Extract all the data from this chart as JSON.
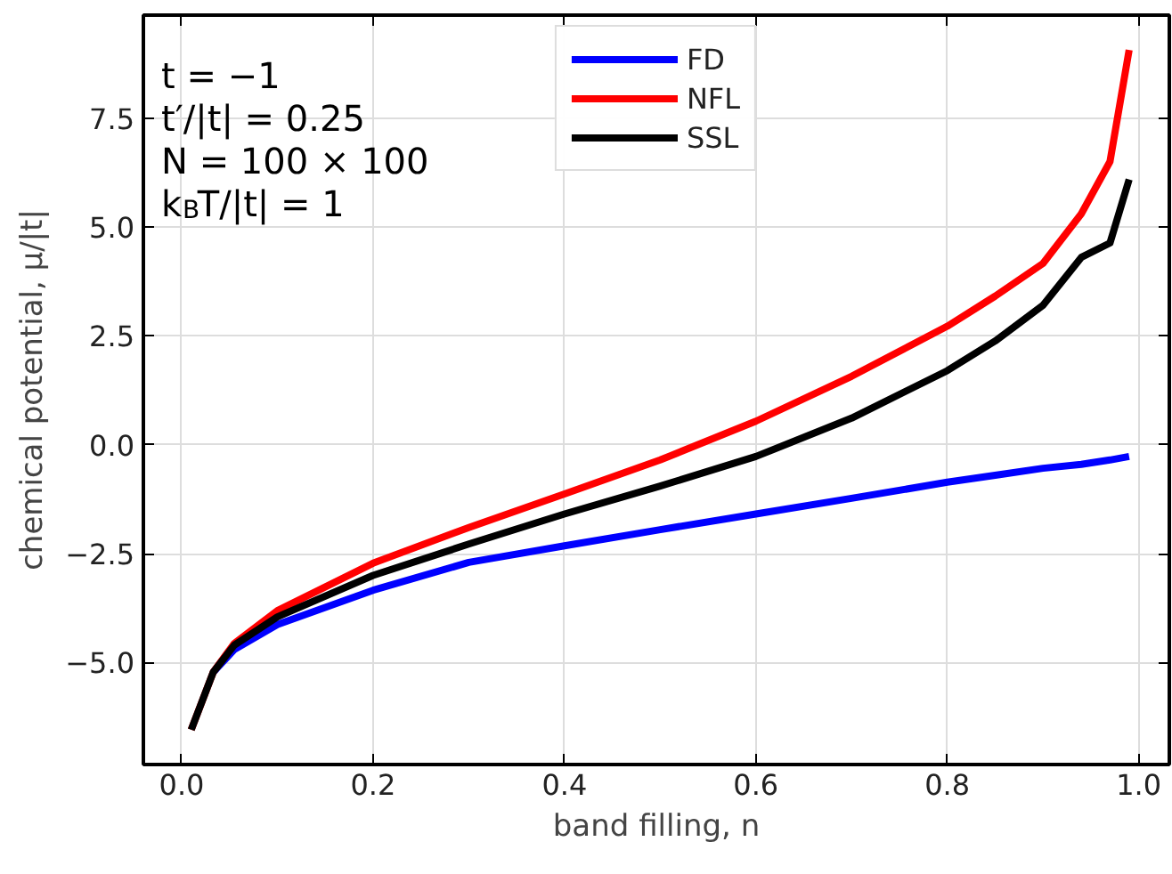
{
  "chart_data": {
    "type": "line",
    "xlabel": "band filling, n",
    "ylabel": "chemical potential, μ/|t|",
    "annotations": [
      "t = −1",
      "t′/|t| = 0.25",
      "N = 100 × 100",
      "k$_{B}$T/|t| = 1"
    ],
    "x": [
      0.01,
      0.033,
      0.055,
      0.1,
      0.2,
      0.3,
      0.4,
      0.5,
      0.6,
      0.7,
      0.8,
      0.85,
      0.9,
      0.94,
      0.97,
      0.99
    ],
    "series": [
      {
        "name": "FD",
        "color": "#0000ff",
        "values": [
          null,
          -5.22,
          -4.7,
          -4.13,
          -3.34,
          -2.7,
          -2.32,
          -1.95,
          -1.59,
          -1.23,
          -0.86,
          -0.7,
          -0.54,
          -0.45,
          -0.35,
          -0.27
        ]
      },
      {
        "name": "NFL",
        "color": "#ff0000",
        "values": [
          -6.54,
          -5.22,
          -4.56,
          -3.81,
          -2.72,
          -1.9,
          -1.13,
          -0.35,
          0.54,
          1.57,
          2.72,
          3.41,
          4.16,
          5.3,
          6.5,
          9.06
        ]
      },
      {
        "name": "SSL",
        "color": "#000000",
        "values": [
          -6.54,
          -5.22,
          -4.6,
          -3.95,
          -3.0,
          -2.28,
          -1.59,
          -0.95,
          -0.27,
          0.61,
          1.7,
          2.38,
          3.2,
          4.3,
          4.63,
          6.09
        ]
      }
    ],
    "xlim": [
      -0.04,
      1.032
    ],
    "ylim": [
      -7.34,
      9.86
    ],
    "xticks": [
      {
        "value": 0,
        "label": "0.0"
      },
      {
        "value": 0.2,
        "label": "0.2"
      },
      {
        "value": 0.4,
        "label": "0.4"
      },
      {
        "value": 0.6,
        "label": "0.6"
      },
      {
        "value": 0.8,
        "label": "0.8"
      },
      {
        "value": 1,
        "label": "1.0"
      }
    ],
    "yticks": [
      {
        "value": -5,
        "label": "−5.0"
      },
      {
        "value": -2.5,
        "label": "−2.5"
      },
      {
        "value": 0,
        "label": "0.0"
      },
      {
        "value": 2.5,
        "label": "2.5"
      },
      {
        "value": 5,
        "label": "5.0"
      },
      {
        "value": 7.5,
        "label": "7.5"
      }
    ],
    "grid": true,
    "legend": "top",
    "marker": "none",
    "line_style": "solid"
  }
}
